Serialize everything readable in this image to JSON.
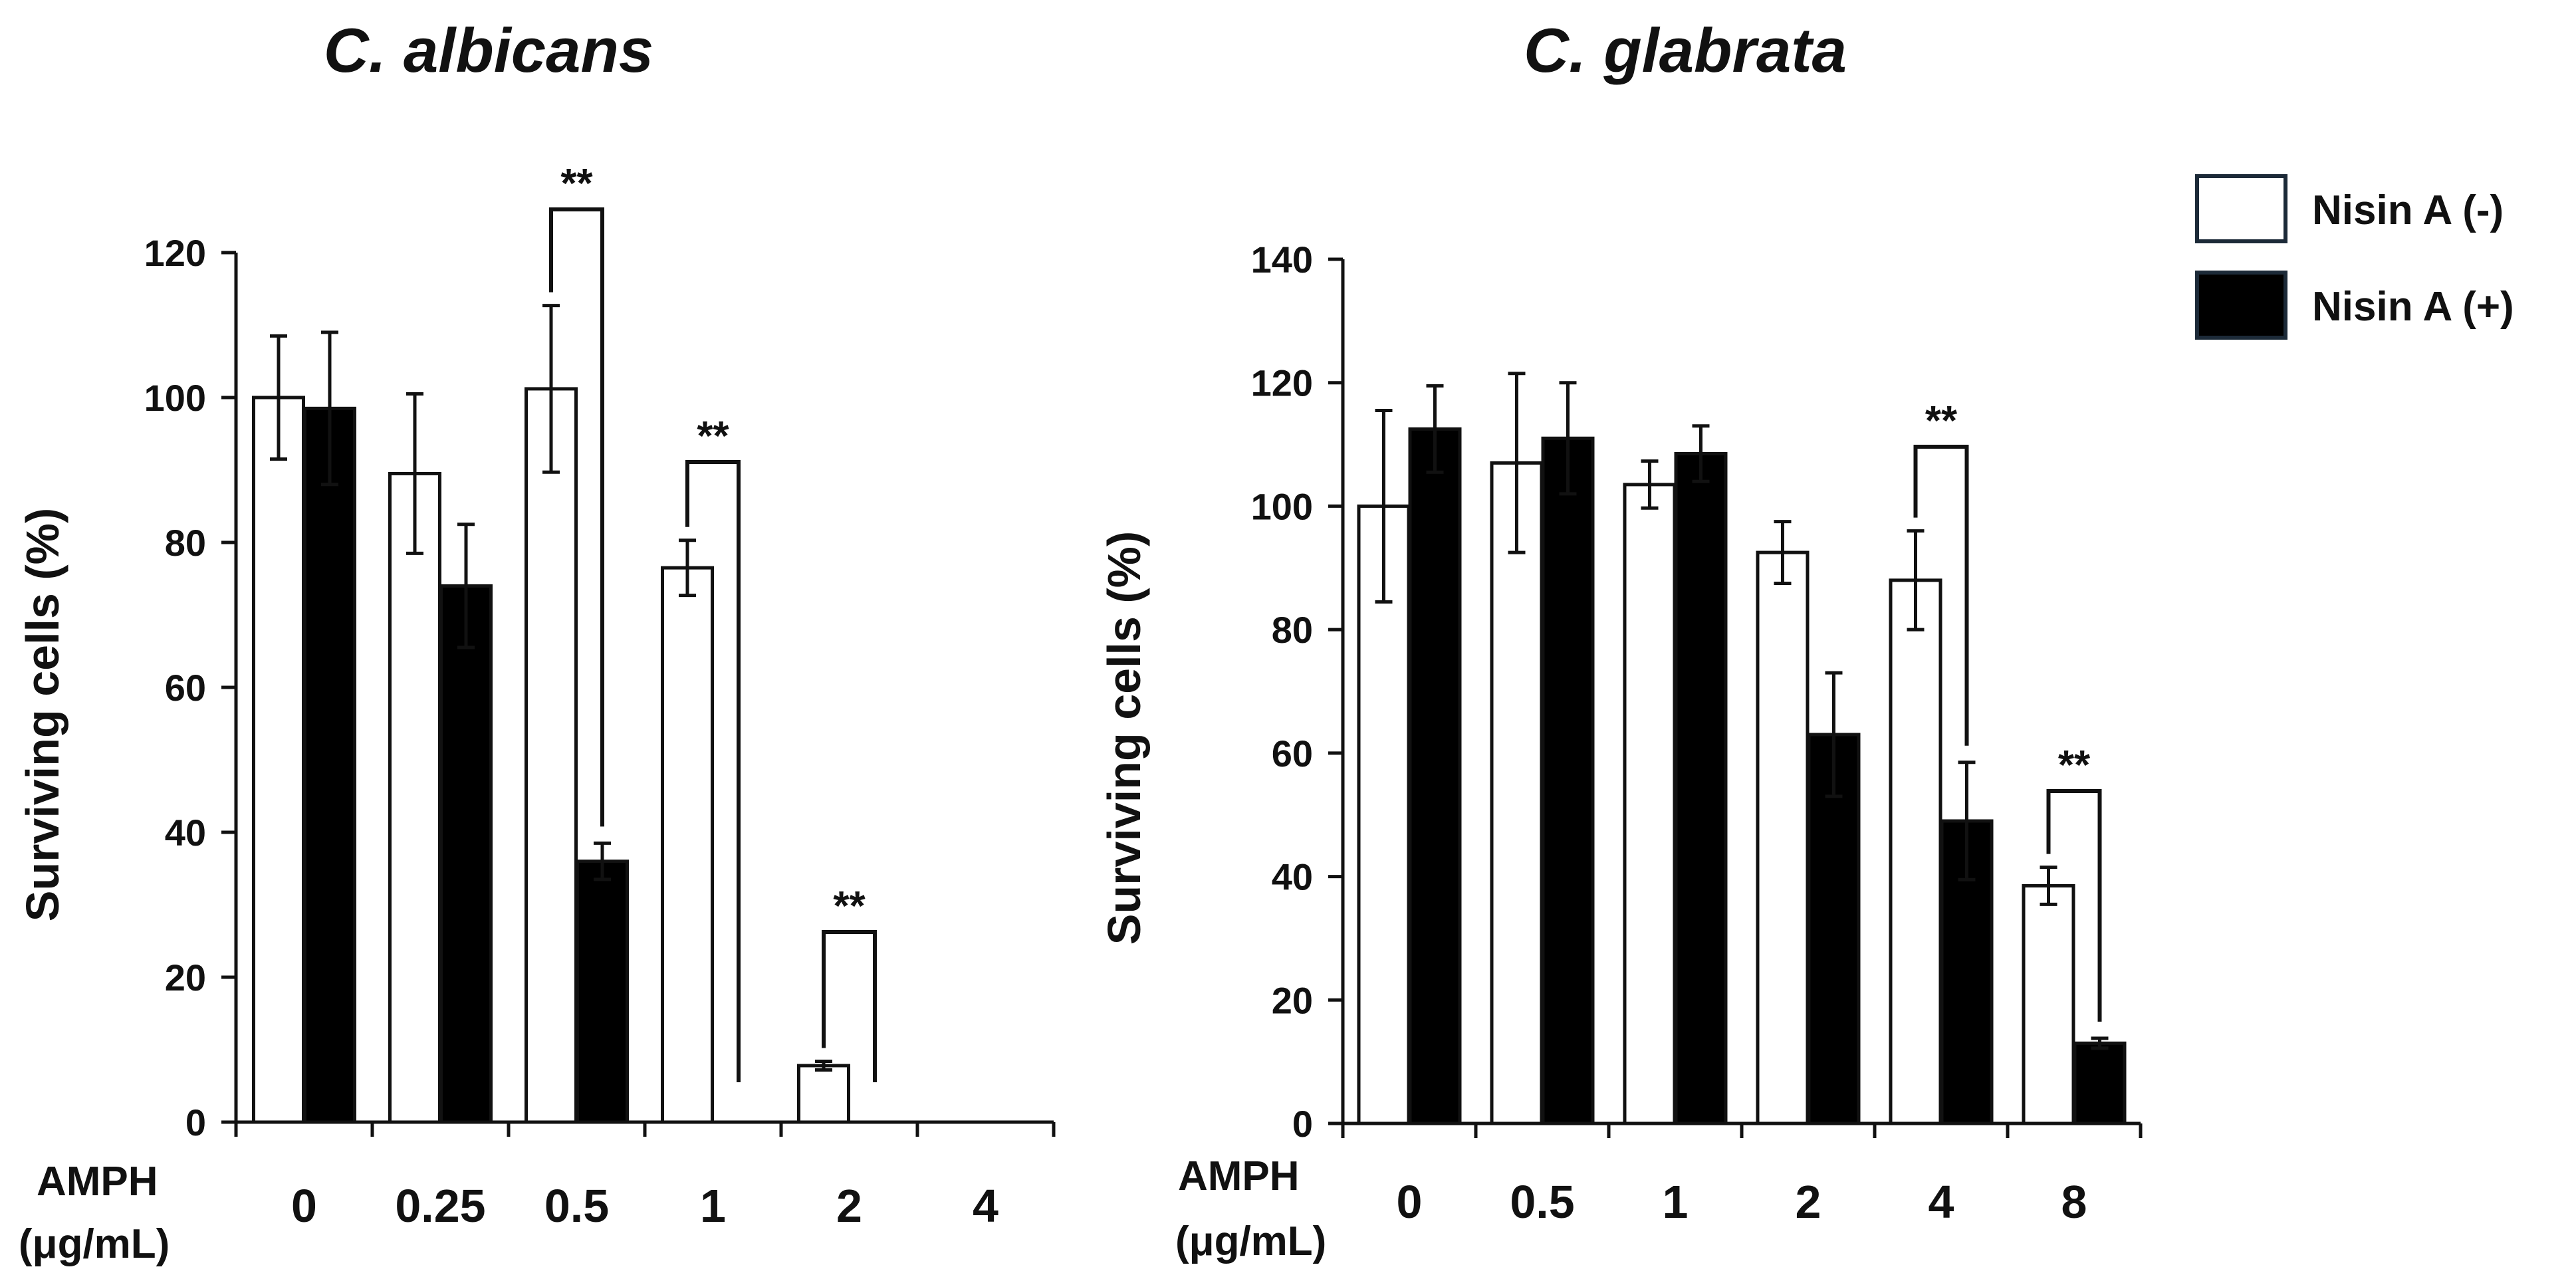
{
  "chart_data": [
    {
      "type": "bar",
      "title": "C. albicans",
      "xlabel_line1": "AMPH",
      "xlabel_line2": "(μg/mL)",
      "ylabel": "Surviving cells (%)",
      "ylim": [
        0,
        120
      ],
      "yticks": [
        "0",
        "20",
        "40",
        "60",
        "80",
        "100",
        "120"
      ],
      "categories": [
        "0",
        "0.25",
        "0.5",
        "1",
        "2",
        "4"
      ],
      "series": [
        {
          "name": "Nisin A (-)",
          "values": [
            100,
            89.5,
            101.2,
            76.5,
            7.8,
            0
          ],
          "errors": [
            8.5,
            11,
            11.5,
            3.8,
            0.6,
            0
          ]
        },
        {
          "name": "Nisin A (+)",
          "values": [
            98.5,
            74,
            36,
            0,
            0,
            0
          ],
          "errors": [
            10.5,
            8.5,
            2.5,
            0,
            0,
            0
          ]
        }
      ],
      "annotations": [
        {
          "category": "0.5",
          "label": "**"
        },
        {
          "category": "1",
          "label": "**"
        },
        {
          "category": "2",
          "label": "**"
        }
      ]
    },
    {
      "type": "bar",
      "title": "C. glabrata",
      "xlabel_line1": "AMPH",
      "xlabel_line2": "(μg/mL)",
      "ylabel": "Surviving cells (%)",
      "ylim": [
        0,
        140
      ],
      "yticks": [
        "0",
        "20",
        "40",
        "60",
        "80",
        "100",
        "120",
        "140"
      ],
      "categories": [
        "0",
        "0.5",
        "1",
        "2",
        "4",
        "8"
      ],
      "series": [
        {
          "name": "Nisin A (-)",
          "values": [
            100,
            107,
            103.5,
            92.5,
            88,
            38.5
          ],
          "errors": [
            15.5,
            14.5,
            3.8,
            5,
            8,
            3
          ]
        },
        {
          "name": "Nisin A (+)",
          "values": [
            112.5,
            111,
            108.5,
            63,
            49,
            13
          ],
          "errors": [
            7,
            9,
            4.5,
            10,
            9.5,
            0.8
          ]
        }
      ],
      "annotations": [
        {
          "category": "4",
          "label": "**"
        },
        {
          "category": "8",
          "label": "**"
        }
      ]
    }
  ],
  "legend": {
    "items": [
      {
        "label": "Nisin A (-)",
        "fill": "#ffffff",
        "stroke": "#1c2a38"
      },
      {
        "label": "Nisin A (+)",
        "fill": "#000000",
        "stroke": "#1c2a38"
      }
    ]
  },
  "colors": {
    "bar_open": "#ffffff",
    "bar_filled": "#000000",
    "ink": "#111111"
  }
}
